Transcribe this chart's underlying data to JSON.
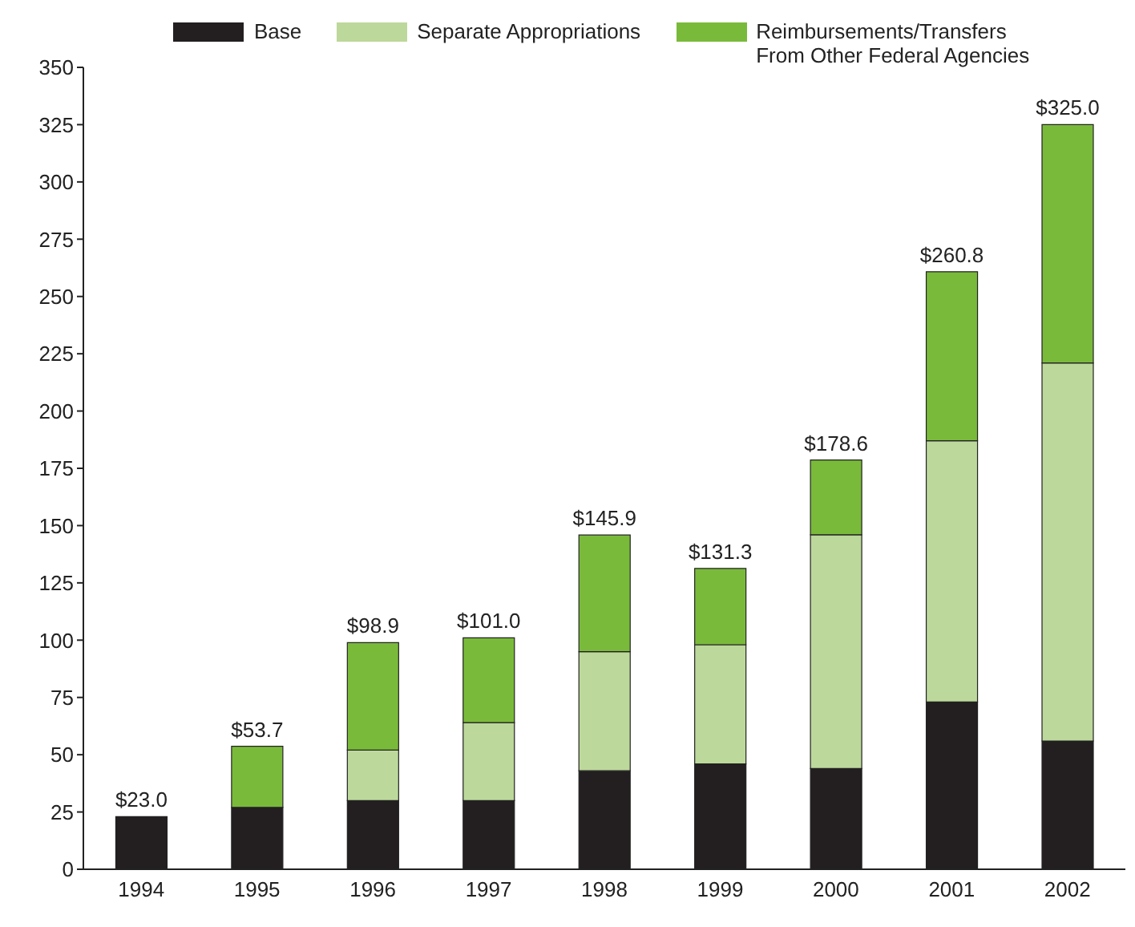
{
  "chart_data": {
    "type": "bar",
    "stacked": true,
    "categories": [
      "1994",
      "1995",
      "1996",
      "1997",
      "1998",
      "1999",
      "2000",
      "2001",
      "2002"
    ],
    "series": [
      {
        "name": "Base",
        "color": "#231f20",
        "values": [
          23,
          27,
          30,
          30,
          43,
          46,
          44,
          73,
          56
        ]
      },
      {
        "name": "Separate Appropriations",
        "color": "#bdd89b",
        "values": [
          null,
          null,
          22,
          34,
          52,
          52,
          102,
          114,
          165
        ]
      },
      {
        "name": "Reimbursements/Transfers From Other Federal Agencies",
        "color": "#7aba3b",
        "values": [
          null,
          26.7,
          46.9,
          37,
          50.9,
          33.3,
          32.6,
          73.8,
          104
        ]
      }
    ],
    "totals": [
      "$23.0",
      "$53.7",
      "$98.9",
      "$101.0",
      "$145.9",
      "$131.3",
      "$178.6",
      "$260.8",
      "$325.0"
    ],
    "ylim": [
      0,
      350
    ],
    "yticks": [
      0,
      25,
      50,
      75,
      100,
      125,
      150,
      175,
      200,
      225,
      250,
      275,
      300,
      325,
      350
    ],
    "grid": false,
    "legend": "top"
  }
}
